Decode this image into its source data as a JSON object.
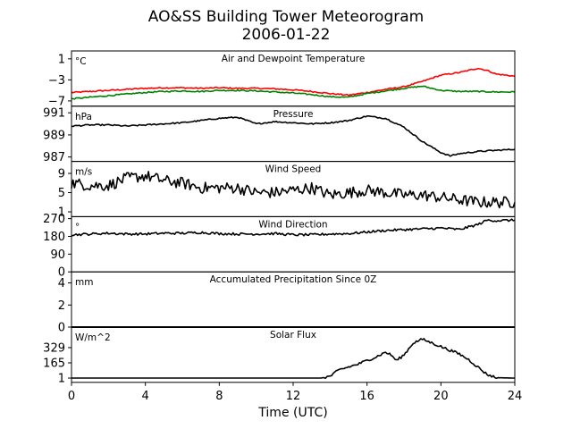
{
  "chart_data": {
    "type": "line",
    "title": "AO&SS Building Tower Meteorogram",
    "subtitle": "2006-01-22",
    "xlabel": "Time (UTC)",
    "xlim": [
      0,
      24
    ],
    "xticks": [
      0,
      4,
      8,
      12,
      16,
      20,
      24
    ],
    "panels": [
      {
        "title": "Air and Dewpoint Temperature",
        "unit": "°C",
        "ylim": [
          -8,
          2.5
        ],
        "yticks": [
          1,
          -3,
          -7
        ],
        "series": [
          {
            "color": "#ff0000",
            "x": [
              0,
              1,
              2,
              3,
              4,
              5,
              6,
              7,
              8,
              9,
              10,
              11,
              12,
              13,
              14,
              15,
              16,
              17,
              18,
              19,
              20,
              21,
              22,
              22.5,
              23,
              24
            ],
            "y": [
              -5.4,
              -5.2,
              -5.0,
              -4.8,
              -4.6,
              -4.5,
              -4.5,
              -4.6,
              -4.5,
              -4.6,
              -4.6,
              -4.7,
              -4.9,
              -5.2,
              -5.6,
              -5.9,
              -5.4,
              -4.8,
              -4.3,
              -3.3,
              -2.1,
              -1.6,
              -0.8,
              -1.2,
              -1.9,
              -2.3
            ]
          },
          {
            "color": "#008000",
            "x": [
              0,
              1,
              2,
              3,
              4,
              5,
              6,
              7,
              8,
              9,
              10,
              11,
              12,
              13,
              14,
              15,
              16,
              17,
              18,
              19,
              20,
              21,
              22,
              23,
              24
            ],
            "y": [
              -6.6,
              -6.3,
              -6.0,
              -5.7,
              -5.4,
              -5.2,
              -5.1,
              -5.2,
              -5.0,
              -5.0,
              -5.1,
              -5.3,
              -5.5,
              -5.8,
              -6.2,
              -6.3,
              -5.6,
              -5.1,
              -4.6,
              -4.2,
              -5.0,
              -5.2,
              -5.2,
              -5.3,
              -5.3
            ]
          }
        ]
      },
      {
        "title": "Pressure",
        "unit": "hPa",
        "ylim": [
          986.6,
          991.6
        ],
        "yticks": [
          991,
          989,
          987
        ],
        "series": [
          {
            "color": "#000000",
            "x": [
              0,
              1,
              2,
              3,
              4,
              5,
              6,
              7,
              8,
              9,
              10,
              11,
              12,
              13,
              14,
              15,
              16,
              17,
              18,
              19,
              20,
              20.5,
              21,
              22,
              23,
              24
            ],
            "y": [
              989.8,
              989.9,
              989.9,
              989.8,
              989.9,
              990.0,
              990.1,
              990.3,
              990.5,
              990.6,
              990.0,
              990.2,
              990.1,
              990.0,
              990.1,
              990.3,
              990.7,
              990.5,
              989.7,
              988.4,
              987.4,
              987.1,
              987.3,
              987.5,
              987.6,
              987.7
            ]
          }
        ]
      },
      {
        "title": "Wind Speed",
        "unit": "m/s",
        "ylim": [
          0,
          11.5
        ],
        "yticks": [
          9,
          5,
          1
        ],
        "series": [
          {
            "color": "#000000",
            "x": [
              0,
              1,
              2,
              3,
              4,
              5,
              6,
              7,
              8,
              9,
              10,
              11,
              12,
              13,
              14,
              15,
              16,
              17,
              18,
              19,
              20,
              21,
              22,
              23,
              24
            ],
            "y": [
              7.0,
              6.5,
              6.5,
              8.0,
              8.5,
              7.5,
              7.0,
              6.0,
              6.0,
              6.0,
              5.0,
              5.0,
              5.5,
              6.0,
              4.5,
              5.0,
              5.5,
              5.0,
              4.5,
              4.5,
              4.0,
              3.5,
              3.0,
              3.0,
              3.0
            ]
          }
        ]
      },
      {
        "title": "Wind Direction",
        "unit": "°",
        "ylim": [
          0,
          280
        ],
        "yticks": [
          270,
          180,
          90,
          0
        ],
        "series": [
          {
            "color": "#000000",
            "x": [
              0,
              1,
              2,
              3,
              4,
              5,
              6,
              7,
              8,
              9,
              10,
              11,
              12,
              13,
              14,
              15,
              16,
              17,
              18,
              19,
              20,
              21,
              22,
              22.5,
              23,
              24
            ],
            "y": [
              188,
              192,
              196,
              192,
              192,
              196,
              196,
              200,
              194,
              192,
              192,
              194,
              188,
              188,
              192,
              194,
              202,
              210,
              214,
              218,
              222,
              215,
              240,
              262,
              260,
              262
            ]
          }
        ]
      },
      {
        "title": "Accumulated Precipitation Since 0Z",
        "unit": "mm",
        "ylim": [
          0,
          5
        ],
        "yticks": [
          4,
          2,
          0
        ],
        "series": [
          {
            "color": "#000000",
            "x": [
              0,
              24
            ],
            "y": [
              0,
              0
            ]
          }
        ]
      },
      {
        "title": "Solar Flux",
        "unit": "W/m^2",
        "ylim": [
          -45,
          550
        ],
        "yticks": [
          329,
          165,
          1
        ],
        "series": [
          {
            "color": "#000000",
            "x": [
              0,
              13.5,
              14,
              14.5,
              15,
              15.5,
              16,
              16.5,
              17,
              17.3,
              17.6,
              18,
              18.5,
              19,
              19.5,
              20,
              20.5,
              21,
              21.5,
              22,
              22.5,
              23,
              24
            ],
            "y": [
              1,
              1,
              20,
              90,
              120,
              150,
              190,
              230,
              280,
              250,
              190,
              250,
              380,
              420,
              380,
              340,
              300,
              260,
              200,
              120,
              40,
              5,
              1
            ]
          }
        ]
      }
    ]
  }
}
